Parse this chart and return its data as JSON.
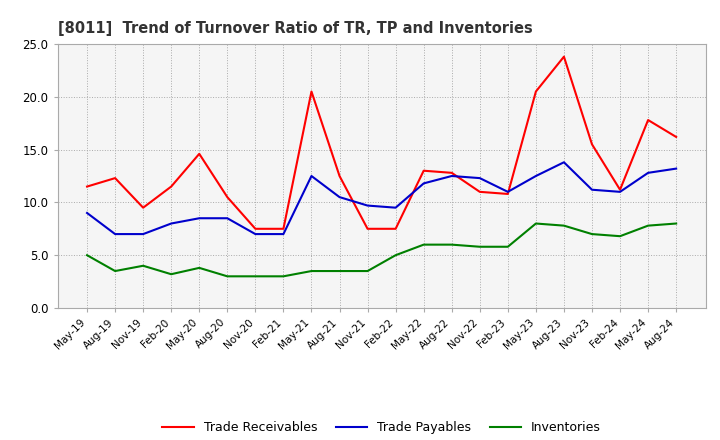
{
  "title": "[8011]  Trend of Turnover Ratio of TR, TP and Inventories",
  "ylim": [
    0.0,
    25.0
  ],
  "yticks": [
    0.0,
    5.0,
    10.0,
    15.0,
    20.0,
    25.0
  ],
  "dates": [
    "May-19",
    "Aug-19",
    "Nov-19",
    "Feb-20",
    "May-20",
    "Aug-20",
    "Nov-20",
    "Feb-21",
    "May-21",
    "Aug-21",
    "Nov-21",
    "Feb-22",
    "May-22",
    "Aug-22",
    "Nov-22",
    "Feb-23",
    "May-23",
    "Aug-23",
    "Nov-23",
    "Feb-24",
    "May-24",
    "Aug-24"
  ],
  "trade_receivables": [
    11.5,
    12.3,
    9.5,
    11.5,
    14.6,
    10.5,
    7.5,
    7.5,
    20.5,
    12.5,
    7.5,
    7.5,
    13.0,
    12.8,
    11.0,
    10.8,
    20.5,
    23.8,
    15.5,
    11.2,
    17.8,
    16.2
  ],
  "trade_payables": [
    9.0,
    7.0,
    7.0,
    8.0,
    8.5,
    8.5,
    7.0,
    7.0,
    12.5,
    10.5,
    9.7,
    9.5,
    11.8,
    12.5,
    12.3,
    11.0,
    12.5,
    13.8,
    11.2,
    11.0,
    12.8,
    13.2
  ],
  "inventories": [
    5.0,
    3.5,
    4.0,
    3.2,
    3.8,
    3.0,
    3.0,
    3.0,
    3.5,
    3.5,
    3.5,
    5.0,
    6.0,
    6.0,
    5.8,
    5.8,
    8.0,
    7.8,
    7.0,
    6.8,
    7.8,
    8.0
  ],
  "tr_color": "#ff0000",
  "tp_color": "#0000cc",
  "inv_color": "#008000",
  "legend_labels": [
    "Trade Receivables",
    "Trade Payables",
    "Inventories"
  ],
  "background_color": "#ffffff",
  "plot_bg_color": "#f5f5f5",
  "grid_color": "#aaaaaa"
}
